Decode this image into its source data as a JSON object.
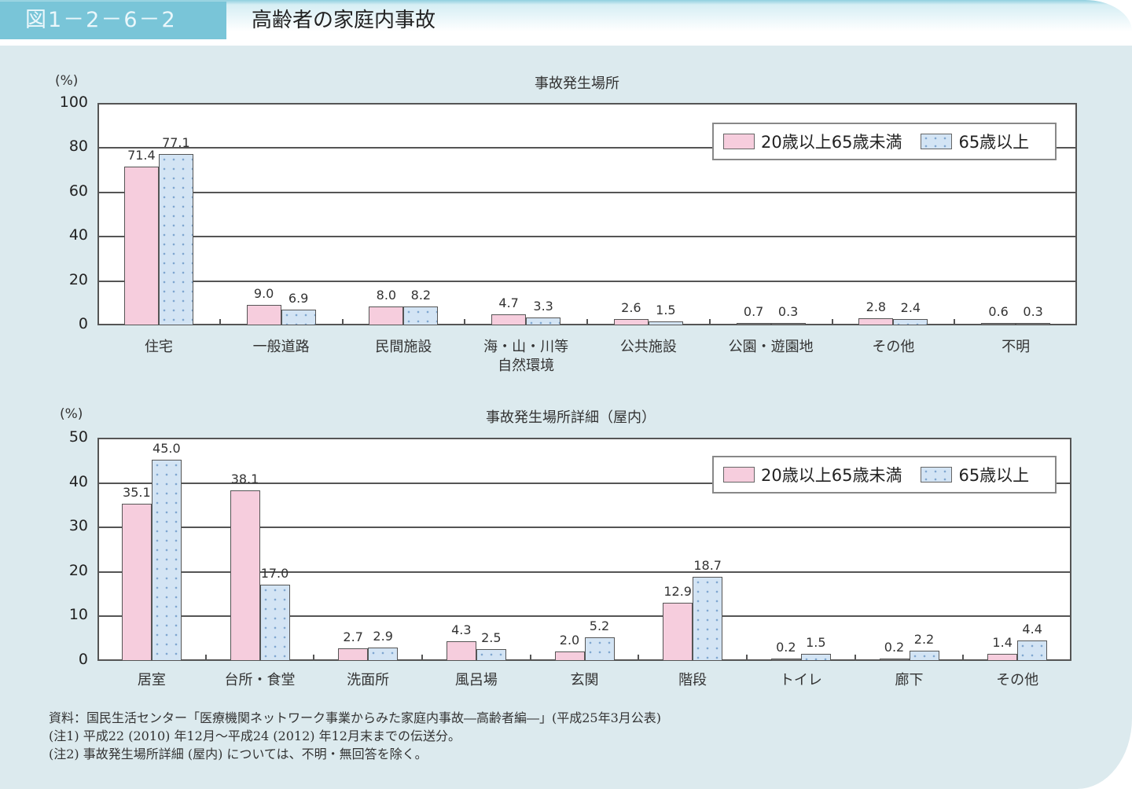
{
  "header": {
    "figure_number": "図1－2－6－2",
    "title": "高齢者の家庭内事故"
  },
  "legend": {
    "series": [
      {
        "name": "20歳以上65歳未満",
        "color": "#f6cddd"
      },
      {
        "name": "65歳以上",
        "color": "#d3e4f4"
      }
    ]
  },
  "notes": [
    "資料：国民生活センター「医療機関ネットワーク事業からみた家庭内事故―高齢者編―」(平成25年3月公表)",
    "(注1) 平成22 (2010) 年12月～平成24 (2012) 年12月末までの伝送分。",
    "(注2) 事故発生場所詳細 (屋内) については、不明・無回答を除く。"
  ],
  "chart_data": [
    {
      "type": "bar",
      "title": "事故発生場所",
      "ylabel": "(%)",
      "ylim": [
        0,
        100
      ],
      "yticks": [
        "100",
        "80",
        "60",
        "40",
        "20",
        "0"
      ],
      "grid": true,
      "legend_position": "upper right",
      "categories": [
        "住宅",
        "一般道路",
        "民間施設",
        "海・山・川等\n自然環境",
        "公共施設",
        "公園・遊園地",
        "その他",
        "不明"
      ],
      "category_lines": [
        [
          "住宅"
        ],
        [
          "一般道路"
        ],
        [
          "民間施設"
        ],
        [
          "海・山・川等",
          "自然環境"
        ],
        [
          "公共施設"
        ],
        [
          "公園・遊園地"
        ],
        [
          "その他"
        ],
        [
          "不明"
        ]
      ],
      "series": [
        {
          "name": "20歳以上65歳未満",
          "values": [
            71.4,
            9.0,
            8.0,
            4.7,
            2.6,
            0.7,
            2.8,
            0.6
          ],
          "labels": [
            "71.4",
            "9.0",
            "8.0",
            "4.7",
            "2.6",
            "0.7",
            "2.8",
            "0.6"
          ]
        },
        {
          "name": "65歳以上",
          "values": [
            77.1,
            6.9,
            8.2,
            3.3,
            1.5,
            0.3,
            2.4,
            0.3
          ],
          "labels": [
            "77.1",
            "6.9",
            "8.2",
            "3.3",
            "1.5",
            "0.3",
            "2.4",
            "0.3"
          ]
        }
      ]
    },
    {
      "type": "bar",
      "title": "事故発生場所詳細（屋内）",
      "ylabel": "(%)",
      "ylim": [
        0,
        50
      ],
      "yticks": [
        "50",
        "40",
        "30",
        "20",
        "10",
        "0"
      ],
      "grid": true,
      "legend_position": "upper right",
      "categories": [
        "居室",
        "台所・食堂",
        "洗面所",
        "風呂場",
        "玄関",
        "階段",
        "トイレ",
        "廊下",
        "その他"
      ],
      "category_lines": [
        [
          "居室"
        ],
        [
          "台所・食堂"
        ],
        [
          "洗面所"
        ],
        [
          "風呂場"
        ],
        [
          "玄関"
        ],
        [
          "階段"
        ],
        [
          "トイレ"
        ],
        [
          "廊下"
        ],
        [
          "その他"
        ]
      ],
      "series": [
        {
          "name": "20歳以上65歳未満",
          "values": [
            35.1,
            38.1,
            2.7,
            4.3,
            2.0,
            12.9,
            0.2,
            0.2,
            1.4
          ],
          "labels": [
            "35.1",
            "38.1",
            "2.7",
            "4.3",
            "2.0",
            "12.9",
            "0.2",
            "0.2",
            "1.4"
          ]
        },
        {
          "name": "65歳以上",
          "values": [
            45.0,
            17.0,
            2.9,
            2.5,
            5.2,
            18.7,
            1.5,
            2.2,
            4.4
          ],
          "labels": [
            "45.0",
            "17.0",
            "2.9",
            "2.5",
            "5.2",
            "18.7",
            "1.5",
            "2.2",
            "4.4"
          ]
        }
      ]
    }
  ]
}
